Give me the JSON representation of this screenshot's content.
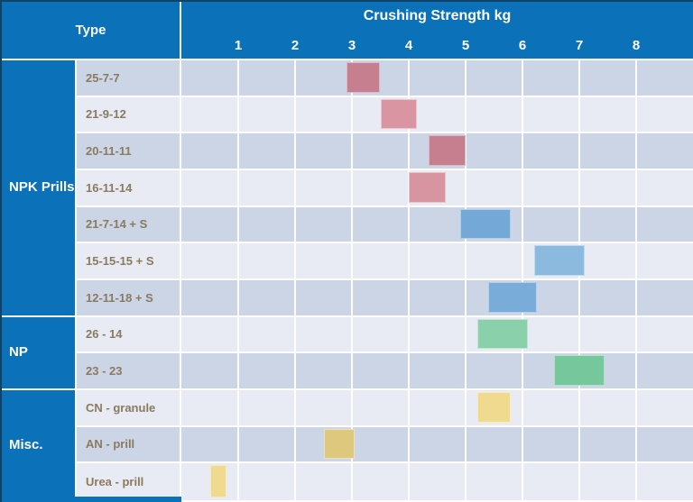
{
  "header": {
    "type_label": "Type",
    "title": "Crushing Strength kg"
  },
  "colors": {
    "header_bg": "#0b72b9",
    "outer_border": "#0d4269",
    "row_dark": "#ccd5e6",
    "row_light": "#e8ebf4",
    "gridline": "#fdfdfe",
    "label_text": "#8a7a5f",
    "red_dark": "#c67f8e",
    "red_light": "#d996a2",
    "blue_dark": "#74a8d6",
    "blue_light": "#8bbade",
    "green_light": "#8ad1ab",
    "green_dark": "#77c79d",
    "yellow_light": "#f0da90",
    "yellow_dark": "#ddc87e"
  },
  "chart_data": {
    "type": "bar",
    "orientation": "horizontal-range",
    "title": "Crushing Strength kg",
    "x_axis": {
      "unit": "kg",
      "ticks": [
        1,
        2,
        3,
        4,
        5,
        6,
        7,
        8
      ],
      "range": [
        0,
        9
      ],
      "gridlines": true
    },
    "y_axis_label": "Type",
    "legend": "none",
    "groups": [
      {
        "name": "NPK Prills",
        "items": [
          {
            "label": "25-7-7",
            "start": 2.9,
            "end": 3.5,
            "color": "#c67f8e"
          },
          {
            "label": "21-9-12",
            "start": 3.5,
            "end": 4.15,
            "color": "#d996a2"
          },
          {
            "label": "20-11-11",
            "start": 4.35,
            "end": 5.0,
            "color": "#c67f8e"
          },
          {
            "label": "16-11-14",
            "start": 4.0,
            "end": 4.65,
            "color": "#d795a1"
          },
          {
            "label": "21-7-14 + S",
            "start": 4.9,
            "end": 5.8,
            "color": "#74a8d6"
          },
          {
            "label": "15-15-15 + S",
            "start": 6.2,
            "end": 7.1,
            "color": "#8bbade"
          },
          {
            "label": "12-11-18 + S",
            "start": 5.4,
            "end": 6.25,
            "color": "#79acd9"
          }
        ]
      },
      {
        "name": "NP",
        "items": [
          {
            "label": "26 - 14",
            "start": 5.2,
            "end": 6.1,
            "color": "#8ad1ab"
          },
          {
            "label": "23 - 23",
            "start": 6.55,
            "end": 7.45,
            "color": "#77c79d"
          }
        ]
      },
      {
        "name": "Misc.",
        "items": [
          {
            "label": "CN - granule",
            "start": 5.2,
            "end": 5.8,
            "color": "#f0da90"
          },
          {
            "label": "AN - prill",
            "start": 2.5,
            "end": 3.05,
            "color": "#ddc87e"
          },
          {
            "label": "Urea - prill",
            "start": 0.5,
            "end": 0.8,
            "color": "#f0da90"
          }
        ]
      }
    ]
  }
}
